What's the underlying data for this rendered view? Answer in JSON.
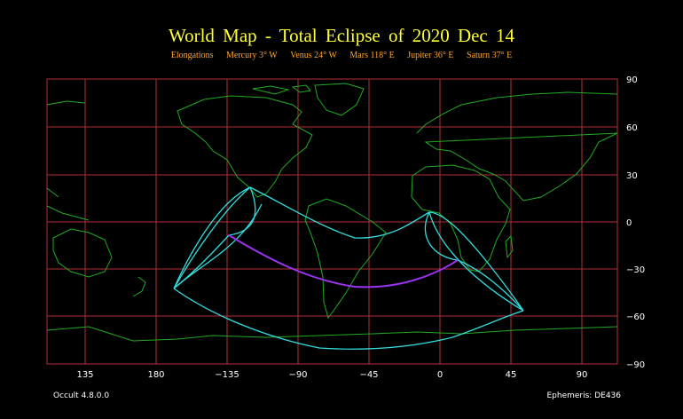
{
  "title": "World Map  -  Total Eclipse  of  2020 Dec 14",
  "elongations": {
    "label": "Elongations",
    "items": [
      "Mercury 3° W",
      "Venus 24° W",
      "Mars 118° E",
      "Jupiter 36° E",
      "Saturn 37° E"
    ]
  },
  "footer": {
    "version": "Occult 4.8.0.0",
    "ephemeris": "Ephemeris: DE436"
  },
  "colors": {
    "grid": "#b0303a",
    "coast": "#22aa22",
    "limits": "#33dddd",
    "centerline": "#9933ee",
    "title": "#ffff33",
    "subtitle": "#ffa733"
  },
  "axes": {
    "lon_ticks": [
      "135",
      "180",
      "−135",
      "−90",
      "−45",
      "0",
      "45",
      "90"
    ],
    "lat_ticks": [
      "90",
      "60",
      "30",
      "0",
      "−30",
      "−60",
      "−90"
    ]
  }
}
